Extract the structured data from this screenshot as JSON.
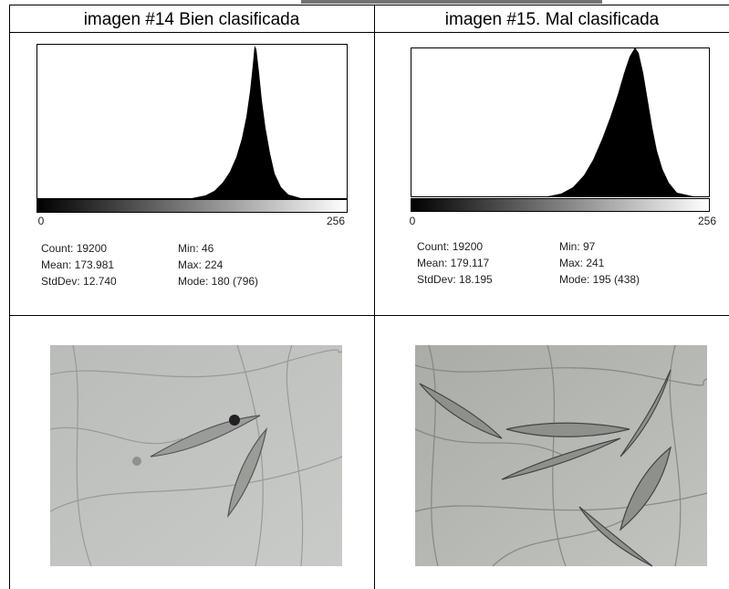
{
  "table": {
    "headers": [
      "imagen #14 Bien clasificada",
      "imagen #15. Mal clasificada"
    ],
    "histograms": [
      {
        "axis_min": "0",
        "axis_max": "256",
        "stats": [
          [
            "Count: 19200",
            "Mean: 173.981",
            "StdDev: 12.740"
          ],
          [
            "Min: 46",
            "Max: 224",
            "Mode: 180 (796)"
          ]
        ]
      },
      {
        "axis_min": "0",
        "axis_max": "256",
        "stats": [
          [
            "Count: 19200",
            "Mean: 179.117",
            "StdDev: 18.195"
          ],
          [
            "Min: 97",
            "Max: 241",
            "Mode: 195 (438)"
          ]
        ]
      }
    ]
  }
}
